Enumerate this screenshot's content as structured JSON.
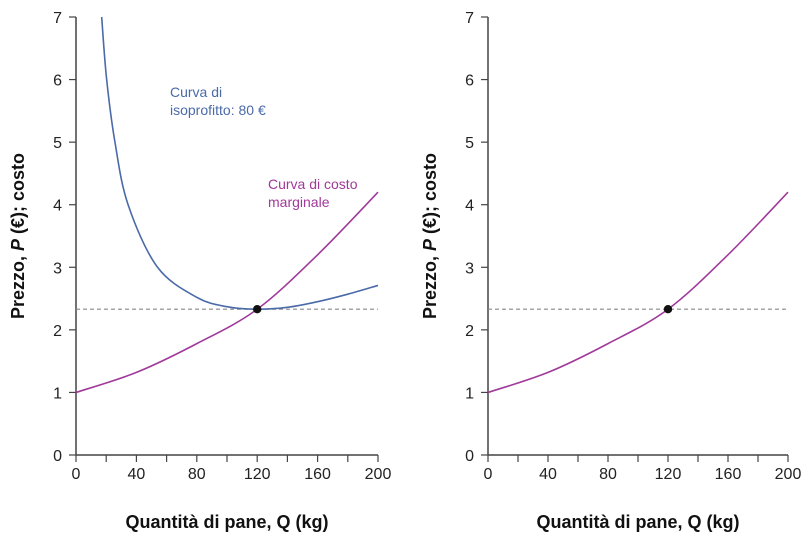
{
  "chart_data": [
    {
      "type": "line",
      "xlabel": "Quantità di pane, Q (kg)",
      "ylabel_parts": [
        "Prezzo, ",
        "P",
        " (€); costo"
      ],
      "xlim": [
        0,
        200
      ],
      "ylim": [
        0,
        7
      ],
      "xticks": [
        0,
        40,
        80,
        120,
        160,
        200
      ],
      "yticks": [
        0,
        1,
        2,
        3,
        4,
        5,
        6,
        7
      ],
      "grid": false,
      "series": [
        {
          "name": "Curva di isoprofitto: 80 €",
          "label_lines": [
            "Curva di",
            "isoprofitto: 80 €"
          ],
          "color": "#4a6aa8",
          "x": [
            17,
            20.3,
            25.8,
            34.5,
            54,
            80,
            100,
            120,
            140,
            160,
            180,
            200
          ],
          "y": [
            7,
            6,
            5,
            4,
            3,
            2.52,
            2.37,
            2.33,
            2.36,
            2.45,
            2.57,
            2.71
          ]
        },
        {
          "name": "Curva di costo marginale",
          "label_lines": [
            "Curva di costo",
            "marginale"
          ],
          "color": "#a0399a",
          "x": [
            0,
            40,
            80,
            120,
            160,
            200
          ],
          "y": [
            1,
            1.32,
            1.78,
            2.33,
            3.2,
            4.2
          ]
        }
      ],
      "reference_line": {
        "y": 2.33,
        "style": "dashed",
        "color": "#888888"
      },
      "point": {
        "x": 120,
        "y": 2.33,
        "color": "#111111"
      }
    },
    {
      "type": "line",
      "xlabel": "Quantità di pane, Q (kg)",
      "ylabel_parts": [
        "Prezzo, ",
        "P",
        " (€); costo"
      ],
      "xlim": [
        0,
        200
      ],
      "ylim": [
        0,
        7
      ],
      "xticks": [
        0,
        40,
        80,
        120,
        160,
        200
      ],
      "yticks": [
        0,
        1,
        2,
        3,
        4,
        5,
        6,
        7
      ],
      "grid": false,
      "series": [
        {
          "color": "#a0399a",
          "x": [
            0,
            40,
            80,
            120,
            160,
            200
          ],
          "y": [
            1,
            1.32,
            1.78,
            2.33,
            3.2,
            4.2
          ]
        }
      ],
      "reference_line": {
        "y": 2.33,
        "style": "dashed",
        "color": "#888888"
      },
      "point": {
        "x": 120,
        "y": 2.33,
        "color": "#111111"
      }
    }
  ]
}
